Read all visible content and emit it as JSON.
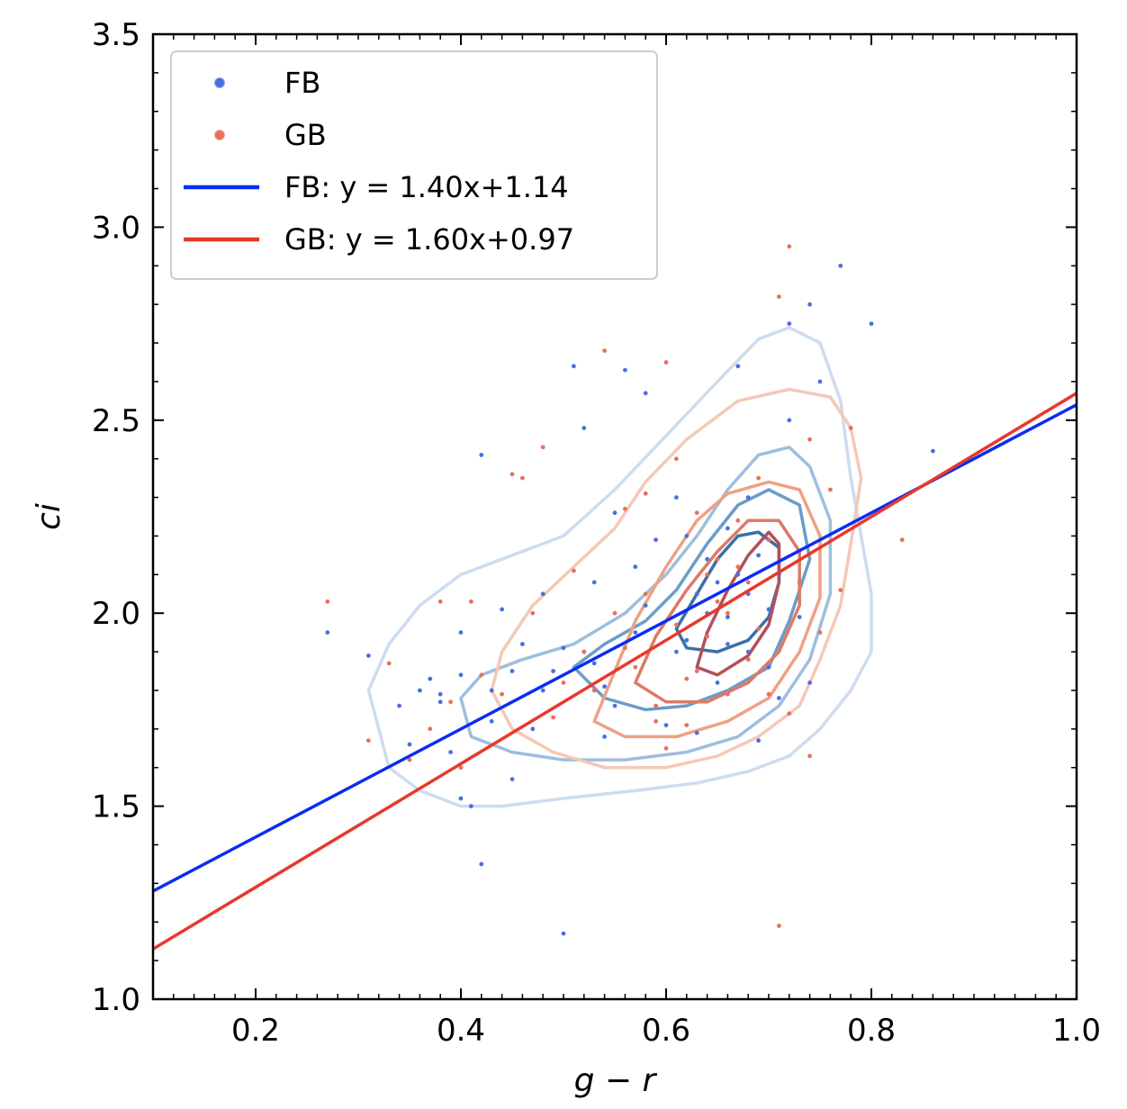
{
  "chart_data": {
    "type": "scatter",
    "xlabel": "g − r",
    "ylabel": "ci",
    "xlim": [
      0.1,
      1.0
    ],
    "ylim": [
      1.0,
      3.5
    ],
    "xticks": [
      0.2,
      0.4,
      0.6,
      0.8,
      1.0
    ],
    "xtick_labels": [
      "0.2",
      "0.4",
      "0.6",
      "0.8",
      "1.0"
    ],
    "yticks": [
      1.0,
      1.5,
      2.0,
      2.5,
      3.0,
      3.5
    ],
    "ytick_labels": [
      "1.0",
      "1.5",
      "2.0",
      "2.5",
      "3.0",
      "3.5"
    ],
    "grid": false,
    "legend_position": "top-left",
    "series": [
      {
        "name": "FB",
        "kind": "scatter",
        "color": "#4a6fe0",
        "points": [
          [
            0.27,
            1.95
          ],
          [
            0.31,
            1.89
          ],
          [
            0.34,
            1.76
          ],
          [
            0.35,
            1.66
          ],
          [
            0.36,
            1.8
          ],
          [
            0.37,
            1.83
          ],
          [
            0.38,
            1.79
          ],
          [
            0.38,
            1.77
          ],
          [
            0.39,
            1.64
          ],
          [
            0.4,
            1.84
          ],
          [
            0.4,
            1.95
          ],
          [
            0.4,
            1.52
          ],
          [
            0.41,
            1.5
          ],
          [
            0.42,
            1.35
          ],
          [
            0.42,
            2.41
          ],
          [
            0.43,
            1.72
          ],
          [
            0.44,
            2.01
          ],
          [
            0.45,
            1.85
          ],
          [
            0.45,
            1.57
          ],
          [
            0.46,
            1.92
          ],
          [
            0.47,
            1.7
          ],
          [
            0.48,
            1.8
          ],
          [
            0.49,
            1.85
          ],
          [
            0.5,
            1.17
          ],
          [
            0.5,
            1.91
          ],
          [
            0.51,
            2.64
          ],
          [
            0.52,
            2.48
          ],
          [
            0.52,
            1.9
          ],
          [
            0.53,
            1.87
          ],
          [
            0.54,
            1.81
          ],
          [
            0.55,
            1.76
          ],
          [
            0.55,
            2.26
          ],
          [
            0.56,
            2.63
          ],
          [
            0.57,
            1.95
          ],
          [
            0.58,
            2.57
          ],
          [
            0.58,
            2.02
          ],
          [
            0.59,
            2.19
          ],
          [
            0.6,
            1.71
          ],
          [
            0.61,
            1.9
          ],
          [
            0.61,
            2.3
          ],
          [
            0.62,
            2.2
          ],
          [
            0.63,
            2.05
          ],
          [
            0.63,
            1.69
          ],
          [
            0.64,
            2.14
          ],
          [
            0.65,
            2.08
          ],
          [
            0.65,
            1.82
          ],
          [
            0.66,
            1.99
          ],
          [
            0.66,
            2.22
          ],
          [
            0.67,
            2.1
          ],
          [
            0.67,
            2.64
          ],
          [
            0.68,
            1.9
          ],
          [
            0.68,
            2.05
          ],
          [
            0.69,
            2.15
          ],
          [
            0.69,
            1.67
          ],
          [
            0.7,
            2.01
          ],
          [
            0.7,
            1.86
          ],
          [
            0.71,
            2.1
          ],
          [
            0.71,
            1.78
          ],
          [
            0.72,
            2.5
          ],
          [
            0.72,
            2.75
          ],
          [
            0.73,
            1.99
          ],
          [
            0.74,
            2.8
          ],
          [
            0.75,
            2.6
          ],
          [
            0.77,
            2.9
          ],
          [
            0.8,
            2.75
          ],
          [
            0.86,
            2.42
          ],
          [
            0.43,
            1.8
          ],
          [
            0.48,
            2.05
          ],
          [
            0.53,
            2.08
          ],
          [
            0.66,
            1.92
          ],
          [
            0.62,
            1.93
          ],
          [
            0.74,
            1.82
          ],
          [
            0.64,
            2.0
          ],
          [
            0.57,
            2.12
          ],
          [
            0.54,
            1.68
          ],
          [
            0.68,
            2.3
          ],
          [
            0.7,
            2.19
          ]
        ]
      },
      {
        "name": "GB",
        "kind": "scatter",
        "color": "#e8705a",
        "points": [
          [
            0.27,
            2.03
          ],
          [
            0.31,
            1.67
          ],
          [
            0.33,
            1.87
          ],
          [
            0.35,
            1.62
          ],
          [
            0.37,
            1.7
          ],
          [
            0.38,
            2.03
          ],
          [
            0.39,
            1.77
          ],
          [
            0.4,
            1.6
          ],
          [
            0.41,
            2.03
          ],
          [
            0.42,
            1.84
          ],
          [
            0.44,
            1.79
          ],
          [
            0.45,
            2.36
          ],
          [
            0.46,
            2.35
          ],
          [
            0.47,
            2.0
          ],
          [
            0.48,
            2.43
          ],
          [
            0.49,
            1.73
          ],
          [
            0.5,
            1.82
          ],
          [
            0.51,
            2.11
          ],
          [
            0.52,
            1.9
          ],
          [
            0.53,
            1.8
          ],
          [
            0.54,
            2.68
          ],
          [
            0.55,
            2.0
          ],
          [
            0.56,
            2.27
          ],
          [
            0.57,
            1.86
          ],
          [
            0.58,
            2.31
          ],
          [
            0.59,
            1.76
          ],
          [
            0.6,
            2.65
          ],
          [
            0.6,
            1.65
          ],
          [
            0.61,
            2.4
          ],
          [
            0.62,
            1.83
          ],
          [
            0.63,
            2.26
          ],
          [
            0.64,
            1.94
          ],
          [
            0.65,
            2.03
          ],
          [
            0.66,
            1.79
          ],
          [
            0.67,
            2.12
          ],
          [
            0.67,
            2.24
          ],
          [
            0.68,
            1.88
          ],
          [
            0.69,
            2.35
          ],
          [
            0.7,
            1.79
          ],
          [
            0.7,
            2.19
          ],
          [
            0.71,
            2.82
          ],
          [
            0.71,
            1.19
          ],
          [
            0.72,
            2.95
          ],
          [
            0.73,
            2.08
          ],
          [
            0.74,
            2.45
          ],
          [
            0.74,
            1.63
          ],
          [
            0.75,
            1.95
          ],
          [
            0.76,
            2.32
          ],
          [
            0.77,
            2.06
          ],
          [
            0.78,
            2.48
          ],
          [
            0.83,
            2.19
          ],
          [
            0.59,
            1.72
          ],
          [
            0.64,
            2.1
          ],
          [
            0.66,
            2.0
          ],
          [
            0.69,
            1.96
          ],
          [
            0.63,
            1.85
          ],
          [
            0.58,
            2.05
          ],
          [
            0.72,
            1.74
          ],
          [
            0.62,
            1.71
          ],
          [
            0.68,
            2.08
          ],
          [
            0.56,
            1.91
          ],
          [
            0.65,
            2.14
          ],
          [
            0.61,
            1.97
          ]
        ]
      },
      {
        "name": "FB: y = 1.40x+1.14",
        "kind": "line",
        "color": "#0a2cf5",
        "slope": 1.4,
        "intercept": 1.14
      },
      {
        "name": "GB: y = 1.60x+0.97",
        "kind": "line",
        "color": "#e8382a",
        "slope": 1.6,
        "intercept": 0.97
      }
    ],
    "contours": [
      {
        "group": "FB",
        "level": 1,
        "color": "#cddcf0",
        "points": [
          [
            0.32,
            1.7
          ],
          [
            0.31,
            1.8
          ],
          [
            0.33,
            1.92
          ],
          [
            0.36,
            2.02
          ],
          [
            0.4,
            2.1
          ],
          [
            0.44,
            2.14
          ],
          [
            0.5,
            2.2
          ],
          [
            0.55,
            2.32
          ],
          [
            0.6,
            2.46
          ],
          [
            0.65,
            2.6
          ],
          [
            0.69,
            2.71
          ],
          [
            0.72,
            2.74
          ],
          [
            0.75,
            2.7
          ],
          [
            0.77,
            2.55
          ],
          [
            0.78,
            2.35
          ],
          [
            0.79,
            2.2
          ],
          [
            0.8,
            2.05
          ],
          [
            0.8,
            1.9
          ],
          [
            0.78,
            1.8
          ],
          [
            0.75,
            1.7
          ],
          [
            0.72,
            1.63
          ],
          [
            0.68,
            1.59
          ],
          [
            0.63,
            1.56
          ],
          [
            0.57,
            1.54
          ],
          [
            0.5,
            1.52
          ],
          [
            0.44,
            1.5
          ],
          [
            0.4,
            1.5
          ],
          [
            0.36,
            1.54
          ],
          [
            0.33,
            1.6
          ],
          [
            0.32,
            1.7
          ]
        ]
      },
      {
        "group": "FB",
        "level": 2,
        "color": "#9dbede",
        "points": [
          [
            0.41,
            1.68
          ],
          [
            0.4,
            1.78
          ],
          [
            0.42,
            1.84
          ],
          [
            0.46,
            1.88
          ],
          [
            0.51,
            1.92
          ],
          [
            0.56,
            2.0
          ],
          [
            0.6,
            2.1
          ],
          [
            0.63,
            2.2
          ],
          [
            0.66,
            2.32
          ],
          [
            0.69,
            2.41
          ],
          [
            0.72,
            2.43
          ],
          [
            0.74,
            2.38
          ],
          [
            0.76,
            2.24
          ],
          [
            0.76,
            2.05
          ],
          [
            0.74,
            1.88
          ],
          [
            0.71,
            1.76
          ],
          [
            0.67,
            1.68
          ],
          [
            0.62,
            1.64
          ],
          [
            0.56,
            1.62
          ],
          [
            0.5,
            1.62
          ],
          [
            0.45,
            1.64
          ],
          [
            0.41,
            1.68
          ]
        ]
      },
      {
        "group": "FB",
        "level": 3,
        "color": "#6b9cc9",
        "points": [
          [
            0.51,
            1.86
          ],
          [
            0.54,
            1.92
          ],
          [
            0.58,
            1.98
          ],
          [
            0.61,
            2.06
          ],
          [
            0.64,
            2.18
          ],
          [
            0.67,
            2.28
          ],
          [
            0.7,
            2.32
          ],
          [
            0.73,
            2.28
          ],
          [
            0.74,
            2.14
          ],
          [
            0.72,
            1.98
          ],
          [
            0.7,
            1.86
          ],
          [
            0.66,
            1.8
          ],
          [
            0.62,
            1.76
          ],
          [
            0.58,
            1.75
          ],
          [
            0.54,
            1.78
          ],
          [
            0.51,
            1.86
          ]
        ]
      },
      {
        "group": "FB",
        "level": 4,
        "color": "#3b6fa6",
        "points": [
          [
            0.61,
            1.96
          ],
          [
            0.63,
            2.05
          ],
          [
            0.65,
            2.14
          ],
          [
            0.67,
            2.2
          ],
          [
            0.69,
            2.21
          ],
          [
            0.71,
            2.17
          ],
          [
            0.71,
            2.08
          ],
          [
            0.7,
            1.99
          ],
          [
            0.68,
            1.93
          ],
          [
            0.65,
            1.9
          ],
          [
            0.62,
            1.91
          ],
          [
            0.61,
            1.96
          ]
        ]
      },
      {
        "group": "GB",
        "level": 1,
        "color": "#f5c8b6",
        "points": [
          [
            0.43,
            1.8
          ],
          [
            0.44,
            1.9
          ],
          [
            0.47,
            2.02
          ],
          [
            0.51,
            2.12
          ],
          [
            0.55,
            2.22
          ],
          [
            0.58,
            2.34
          ],
          [
            0.62,
            2.45
          ],
          [
            0.67,
            2.55
          ],
          [
            0.72,
            2.58
          ],
          [
            0.76,
            2.56
          ],
          [
            0.78,
            2.48
          ],
          [
            0.79,
            2.35
          ],
          [
            0.78,
            2.18
          ],
          [
            0.77,
            2.02
          ],
          [
            0.75,
            1.88
          ],
          [
            0.73,
            1.76
          ],
          [
            0.69,
            1.68
          ],
          [
            0.65,
            1.63
          ],
          [
            0.6,
            1.6
          ],
          [
            0.54,
            1.6
          ],
          [
            0.49,
            1.64
          ],
          [
            0.45,
            1.7
          ],
          [
            0.43,
            1.8
          ]
        ]
      },
      {
        "group": "GB",
        "level": 2,
        "color": "#eea184",
        "points": [
          [
            0.53,
            1.72
          ],
          [
            0.55,
            1.85
          ],
          [
            0.57,
            1.98
          ],
          [
            0.6,
            2.12
          ],
          [
            0.63,
            2.24
          ],
          [
            0.66,
            2.31
          ],
          [
            0.7,
            2.34
          ],
          [
            0.73,
            2.32
          ],
          [
            0.75,
            2.2
          ],
          [
            0.75,
            2.04
          ],
          [
            0.73,
            1.9
          ],
          [
            0.7,
            1.78
          ],
          [
            0.66,
            1.72
          ],
          [
            0.61,
            1.68
          ],
          [
            0.56,
            1.68
          ],
          [
            0.53,
            1.72
          ]
        ]
      },
      {
        "group": "GB",
        "level": 3,
        "color": "#dd7a66",
        "points": [
          [
            0.57,
            1.82
          ],
          [
            0.59,
            1.94
          ],
          [
            0.62,
            2.06
          ],
          [
            0.65,
            2.16
          ],
          [
            0.68,
            2.24
          ],
          [
            0.71,
            2.24
          ],
          [
            0.73,
            2.16
          ],
          [
            0.73,
            2.02
          ],
          [
            0.71,
            1.9
          ],
          [
            0.68,
            1.82
          ],
          [
            0.64,
            1.77
          ],
          [
            0.6,
            1.77
          ],
          [
            0.57,
            1.82
          ]
        ]
      },
      {
        "group": "GB",
        "level": 4,
        "color": "#b0505a",
        "points": [
          [
            0.63,
            1.86
          ],
          [
            0.64,
            1.95
          ],
          [
            0.66,
            2.06
          ],
          [
            0.68,
            2.15
          ],
          [
            0.7,
            2.21
          ],
          [
            0.71,
            2.18
          ],
          [
            0.71,
            2.08
          ],
          [
            0.7,
            1.97
          ],
          [
            0.68,
            1.89
          ],
          [
            0.65,
            1.84
          ],
          [
            0.63,
            1.86
          ]
        ]
      }
    ]
  }
}
